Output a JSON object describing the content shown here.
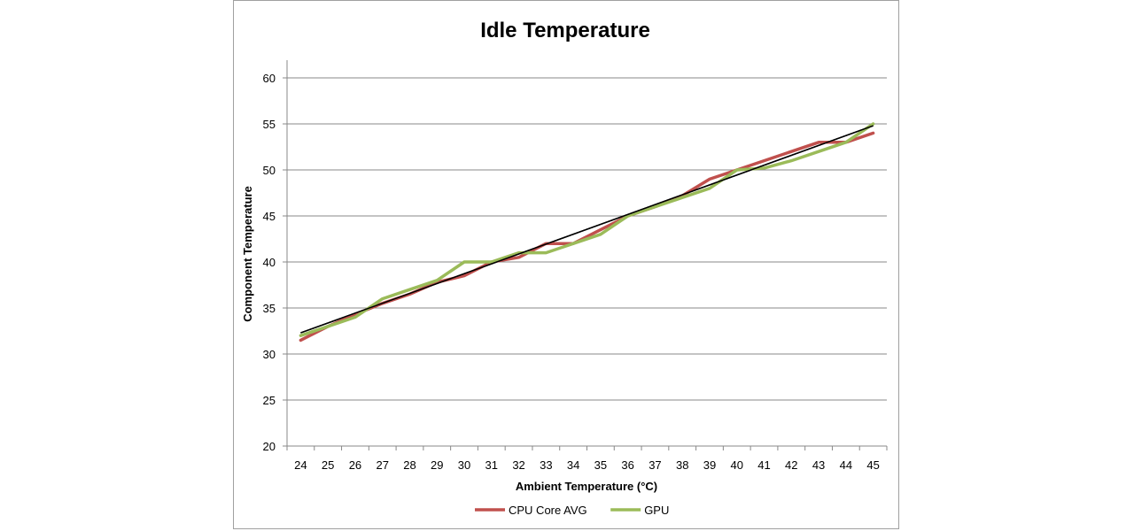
{
  "chart_data": {
    "type": "line",
    "title": "Idle Temperature",
    "xlabel": "Ambient Temperature (°C)",
    "ylabel": "Component Temperature",
    "categories": [
      "24",
      "25",
      "26",
      "27",
      "28",
      "29",
      "30",
      "31",
      "32",
      "33",
      "34",
      "35",
      "36",
      "37",
      "38",
      "39",
      "40",
      "41",
      "42",
      "43",
      "44",
      "45"
    ],
    "ylim": [
      20,
      60
    ],
    "yticks": [
      "20",
      "25",
      "30",
      "35",
      "40",
      "45",
      "50",
      "55",
      "60"
    ],
    "grid": true,
    "legend_position": "bottom",
    "series": [
      {
        "name": "CPU Core AVG",
        "color": "#c0504d",
        "values": [
          31.5,
          33,
          34.3,
          35.5,
          36.5,
          37.8,
          38.5,
          40,
          40.5,
          42,
          42,
          43.5,
          45,
          46,
          47.2,
          49,
          50,
          51,
          52,
          53,
          53,
          54
        ]
      },
      {
        "name": "GPU",
        "color": "#9bbb59",
        "values": [
          32,
          33,
          34,
          36,
          37,
          38,
          40,
          40,
          41,
          41,
          42,
          43,
          45,
          46,
          47,
          48,
          50,
          50.2,
          51,
          52,
          53,
          55
        ]
      }
    ],
    "trendline": {
      "color": "#000000",
      "start": 32.3,
      "end": 54.8
    }
  }
}
